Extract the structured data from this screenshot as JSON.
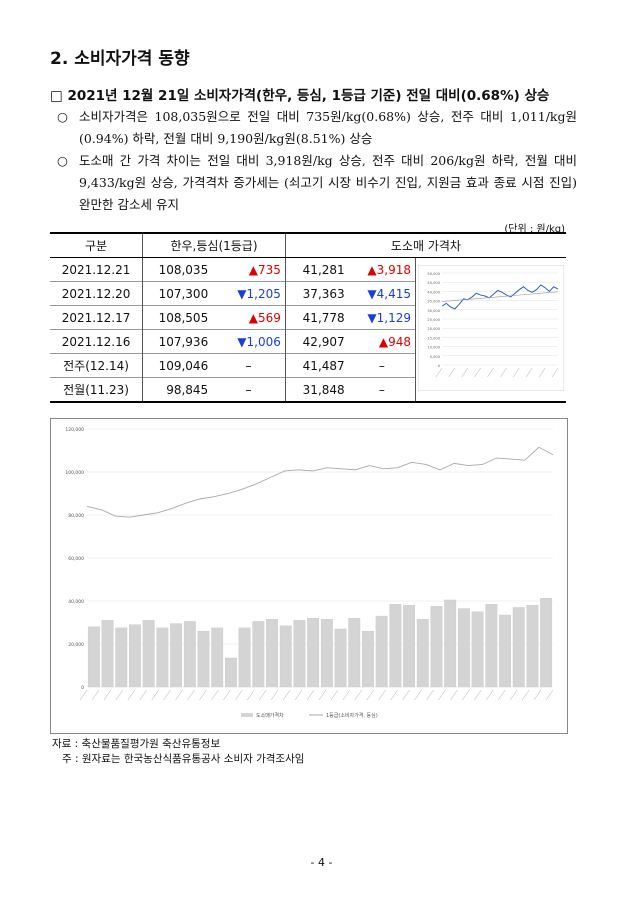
{
  "section_title": "2. 소비자가격 동향",
  "subsection_title": "□ 2021년 12월 21일 소비자가격(한우, 등심, 1등급 기준) 전일 대비(0.68%) 상승",
  "bullets": [
    {
      "mark": "○",
      "text": "소비자가격은 108,035원으로 전일 대비 735원/kg(0.68%) 상승, 전주 대비 1,011/kg원(0.94%) 하락, 전월 대비 9,190원/kg원(8.51%) 상승"
    },
    {
      "mark": "○",
      "text": "도소매 간 가격 차이는 전일 대비 3,918원/kg 상승, 전주 대비 206/kg원 하락, 전월 대비 9,433/kg원 상승, 가격격차 증가세는 (쇠고기 시장 비수기 진입, 지원금 효과 종료 시점 진입) 완만한 감소세 유지"
    }
  ],
  "unit": "(단위 : 원/kg)",
  "table": {
    "headers": [
      "구분",
      "한우,등심(1등급)",
      "도소매 가격차"
    ],
    "rows": [
      {
        "label": "2021.12.21",
        "price": "108,035",
        "price_change": "735",
        "price_dir": "up",
        "gap": "41,281",
        "gap_change": "3,918",
        "gap_dir": "up"
      },
      {
        "label": "2021.12.20",
        "price": "107,300",
        "price_change": "1,205",
        "price_dir": "down",
        "gap": "37,363",
        "gap_change": "4,415",
        "gap_dir": "down"
      },
      {
        "label": "2021.12.17",
        "price": "108,505",
        "price_change": "569",
        "price_dir": "up",
        "gap": "41,778",
        "gap_change": "1,129",
        "gap_dir": "down"
      },
      {
        "label": "2021.12.16",
        "price": "107,936",
        "price_change": "1,006",
        "price_dir": "down",
        "gap": "42,907",
        "gap_change": "948",
        "gap_dir": "up"
      },
      {
        "label": "전주(12.14)",
        "price": "109,046",
        "price_change": "–",
        "price_dir": "none",
        "gap": "41,487",
        "gap_change": "–",
        "gap_dir": "none"
      },
      {
        "label": "전월(11.23)",
        "price": "98,845",
        "price_change": "–",
        "price_dir": "none",
        "gap": "31,848",
        "gap_change": "–",
        "gap_dir": "none"
      }
    ]
  },
  "chart_data": [
    {
      "type": "line",
      "ylim": [
        0,
        50000
      ],
      "y_ticks": [
        "50,000",
        "45,000",
        "40,000",
        "35,000",
        "30,000",
        "25,000",
        "20,000",
        "15,000",
        "10,000",
        "5,000",
        "0"
      ],
      "values": [
        32000,
        33500,
        31500,
        30500,
        33000,
        36000,
        35500,
        37000,
        39000,
        38000,
        37500,
        36500,
        38500,
        40500,
        39500,
        38000,
        37000,
        39000,
        41000,
        42500,
        40500,
        39500,
        41000,
        43500,
        42000,
        40000,
        42500,
        41281
      ]
    },
    {
      "type": "bar+line",
      "ylim": [
        0,
        120000
      ],
      "y_ticks": [
        "120,000",
        "100,000",
        "80,000",
        "60,000",
        "40,000",
        "20,000",
        "0"
      ],
      "legend": [
        "도소매가격차",
        "1등급(소비자가격, 등심)"
      ],
      "line_values": [
        84000,
        82500,
        79500,
        79000,
        80000,
        81000,
        83000,
        85500,
        87500,
        88500,
        90000,
        92000,
        94500,
        97500,
        100500,
        101000,
        100500,
        102000,
        101500,
        101000,
        103000,
        101500,
        102000,
        104500,
        103500,
        101000,
        104000,
        103000,
        103500,
        106500,
        106000,
        105500,
        111500,
        108035
      ],
      "bar_values": [
        28000,
        31000,
        27500,
        29000,
        31000,
        27500,
        29500,
        30500,
        26000,
        27500,
        13500,
        27500,
        30500,
        31500,
        28500,
        31000,
        32000,
        31500,
        27000,
        32000,
        26000,
        33000,
        38500,
        38000,
        31500,
        37500,
        40500,
        36500,
        35000,
        38500,
        33500,
        37000,
        38000,
        41281
      ]
    }
  ],
  "source": "자료 : 축산물품질평가원 축산유통정보",
  "note": "주 : 원자료는 한국농산식품유통공사 소비자 가격조사임",
  "page_number": "- 4 -"
}
